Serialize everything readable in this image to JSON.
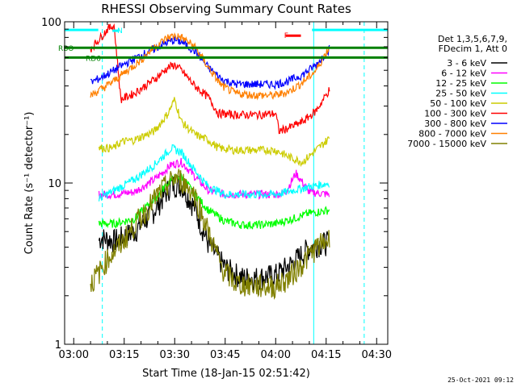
{
  "chart_data": {
    "type": "line",
    "title": "RHESSI Observing Summary Count Rates",
    "xlabel": "Start Time (18-Jan-15 02:51:42)",
    "ylabel": "Count Rate (s⁻¹ detector⁻¹)",
    "ylog": true,
    "ylim": [
      1,
      100
    ],
    "xlim_minutes": [
      -2.7,
      93.3
    ],
    "x_ticks": [
      {
        "label": "03:00",
        "minute": 0
      },
      {
        "label": "03:15",
        "minute": 15
      },
      {
        "label": "03:30",
        "minute": 30
      },
      {
        "label": "03:45",
        "minute": 45
      },
      {
        "label": "04:00",
        "minute": 60
      },
      {
        "label": "04:15",
        "minute": 75
      },
      {
        "label": "04:30",
        "minute": 90
      }
    ],
    "y_ticks": [
      {
        "label": "1",
        "value": 1
      },
      {
        "label": "10",
        "value": 10
      },
      {
        "label": "100",
        "value": 100
      }
    ],
    "legend_header": [
      "Det 1,3,5,6,7,9,",
      "FDecim 1, Att 0"
    ],
    "legend_placement": "right",
    "series": [
      {
        "name": "3 - 6 keV",
        "color": "#000000",
        "x": [
          7.5,
          8,
          12,
          18,
          24,
          29,
          32,
          36,
          40,
          45,
          50,
          55,
          60,
          65,
          70,
          73,
          76
        ],
        "y": [
          4.4,
          4.6,
          4.4,
          5.0,
          6.8,
          9.8,
          9.8,
          7.0,
          4.2,
          3.0,
          2.6,
          2.6,
          2.7,
          3.2,
          4.0,
          4.2,
          4.3
        ]
      },
      {
        "name": "6 - 12 keV",
        "color": "#ff00ff",
        "x": [
          7.5,
          12,
          18,
          24,
          29,
          32,
          36,
          40,
          45,
          50,
          55,
          60,
          63,
          66,
          70,
          76
        ],
        "y": [
          8.5,
          8.5,
          8.8,
          10.5,
          13.0,
          13.5,
          11.0,
          9.0,
          8.5,
          8.5,
          8.5,
          8.5,
          8.8,
          11.5,
          8.8,
          8.5
        ]
      },
      {
        "name": "12 - 25 keV",
        "color": "#00ff00",
        "x": [
          7.5,
          12,
          18,
          24,
          29,
          32,
          36,
          40,
          45,
          50,
          55,
          60,
          65,
          70,
          76
        ],
        "y": [
          5.6,
          5.6,
          6.0,
          8.0,
          10.5,
          11.0,
          8.5,
          6.8,
          5.8,
          5.5,
          5.5,
          5.6,
          6.0,
          6.5,
          6.8
        ]
      },
      {
        "name": "25 - 50 keV",
        "color": "#00ffff",
        "x": [
          7.5,
          12,
          18,
          24,
          29,
          32,
          36,
          40,
          45,
          50,
          55,
          60,
          65,
          70,
          76
        ],
        "y": [
          8.0,
          9.0,
          10.5,
          13.0,
          16.5,
          15.5,
          12.0,
          9.5,
          8.5,
          8.5,
          8.5,
          8.5,
          9.0,
          9.5,
          10.0
        ]
      },
      {
        "name": "50 - 100 keV",
        "color": "#cccc00",
        "x": [
          7.5,
          12,
          14,
          18,
          24,
          28,
          30,
          32,
          36,
          40,
          43,
          48,
          55,
          60,
          64,
          68,
          72,
          76
        ],
        "y": [
          16.5,
          16.5,
          18.0,
          18.5,
          21.0,
          27.0,
          33.0,
          24.0,
          20.0,
          18.5,
          16.5,
          16.0,
          16.0,
          16.0,
          14.5,
          13.5,
          16.0,
          19.0
        ]
      },
      {
        "name": "100 - 300 keV",
        "color": "#ff0000",
        "x": [
          5,
          8,
          10,
          12,
          14,
          18,
          24,
          28,
          30,
          32,
          36,
          40,
          43,
          48,
          55,
          60,
          61,
          64,
          68,
          72,
          76
        ],
        "y": [
          68,
          80,
          90,
          95,
          33,
          36,
          44,
          52,
          54,
          50,
          40,
          34,
          27,
          26.5,
          26.5,
          27,
          21,
          22,
          24,
          28,
          38
        ]
      },
      {
        "name": "300 - 800 keV",
        "color": "#0000ff",
        "x": [
          5,
          8,
          12,
          16,
          20,
          24,
          28,
          30,
          32,
          36,
          40,
          44,
          48,
          55,
          60,
          64,
          68,
          72,
          76
        ],
        "y": [
          42,
          45,
          50,
          56,
          62,
          68,
          75,
          77,
          75,
          66,
          52,
          44,
          41,
          41,
          41,
          43,
          47,
          54,
          68
        ]
      },
      {
        "name": "800 - 7000 keV",
        "color": "#ff8000",
        "x": [
          5,
          8,
          12,
          16,
          20,
          24,
          28,
          30,
          32,
          36,
          40,
          44,
          48,
          55,
          60,
          64,
          68,
          72,
          76
        ],
        "y": [
          35,
          38,
          43,
          50,
          58,
          70,
          80,
          82,
          80,
          70,
          52,
          40,
          36,
          35,
          35,
          37,
          42,
          50,
          70
        ]
      },
      {
        "name": "7000 - 15000 keV",
        "color": "#808000",
        "x": [
          5,
          7.5,
          10,
          14,
          18,
          22,
          26,
          30,
          32,
          36,
          40,
          44,
          48,
          55,
          60,
          64,
          68,
          72,
          76
        ],
        "y": [
          2.4,
          2.8,
          3.4,
          4.2,
          5.5,
          7.0,
          9.0,
          10.8,
          10.5,
          8.5,
          5.0,
          3.0,
          2.4,
          2.3,
          2.3,
          2.6,
          3.2,
          4.0,
          4.5
        ]
      }
    ],
    "flag_lines": [
      {
        "name": "SAA",
        "color": "#00ffff",
        "segments": [
          [
            -2.7,
            7.3
          ],
          [
            70.8,
            93.3
          ]
        ],
        "y": 89
      },
      {
        "name": "N",
        "color": "#00ffff",
        "segments": [
          [
            11.5,
            13.5
          ]
        ],
        "y": 88,
        "label": "N"
      },
      {
        "name": "F",
        "color": "#ff0000",
        "segments": [
          [
            63,
            67.5
          ]
        ],
        "y": 82,
        "label": "F"
      },
      {
        "name": "RBO",
        "color": "#008000",
        "segments": [
          [
            -2.7,
            93.3
          ]
        ],
        "y": 69,
        "label": "RBO"
      },
      {
        "name": "RD6",
        "color": "#008000",
        "segments": [
          [
            -2.7,
            93.3
          ]
        ],
        "y": 60,
        "label": "RD6"
      }
    ],
    "vlines": [
      {
        "minute": 8.5,
        "color": "#00ffff",
        "dash": true
      },
      {
        "minute": 71.3,
        "color": "#00ffff",
        "dash": false
      },
      {
        "minute": 86.3,
        "color": "#00ffff",
        "dash": true
      },
      {
        "minute": -2.7,
        "color": "#00ffff",
        "dash": false
      }
    ]
  },
  "footer": {
    "timestamp": "25-Oct-2021 09:12"
  }
}
